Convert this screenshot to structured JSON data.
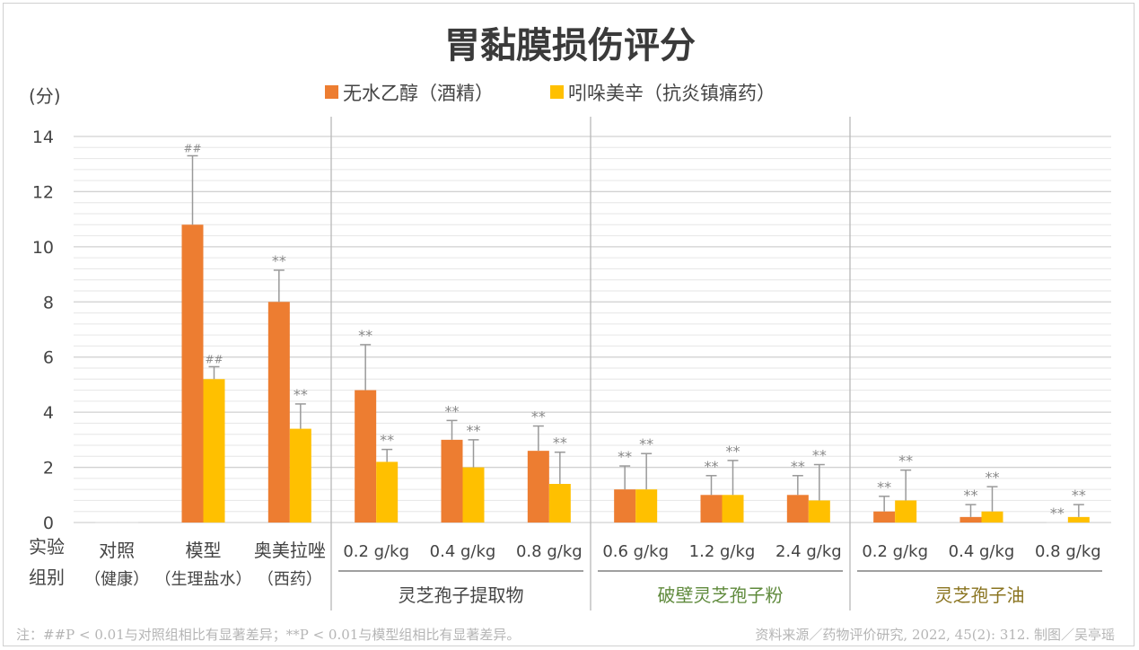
{
  "chart_data": {
    "type": "bar",
    "title": "胃黏膜损伤评分",
    "ylabel": "(分)",
    "xlabel": "实验组别",
    "xlabel_lines": [
      "实验",
      "组别"
    ],
    "ylim": [
      0,
      14
    ],
    "yticks": [
      0,
      2,
      4,
      6,
      8,
      10,
      12,
      14
    ],
    "minor_grid_step": 0.4,
    "grid": true,
    "legend_position": "top",
    "categories": [
      {
        "main": "对照",
        "sub": "（健康）"
      },
      {
        "main": "模型",
        "sub": "（生理盐水）"
      },
      {
        "main": "奥美拉唑",
        "sub": "（西药）"
      },
      {
        "main": "0.2 g/kg"
      },
      {
        "main": "0.4 g/kg"
      },
      {
        "main": "0.8 g/kg"
      },
      {
        "main": "0.6 g/kg"
      },
      {
        "main": "1.2 g/kg"
      },
      {
        "main": "2.4 g/kg"
      },
      {
        "main": "0.2 g/kg"
      },
      {
        "main": "0.4 g/kg"
      },
      {
        "main": "0.8 g/kg"
      }
    ],
    "groups": [
      {
        "label": "灵芝孢子提取物",
        "color": "#444444",
        "range": [
          3,
          5
        ]
      },
      {
        "label": "破壁灵芝孢子粉",
        "color": "#5f8a3c",
        "range": [
          6,
          8
        ]
      },
      {
        "label": "灵芝孢子油",
        "color": "#8a7420",
        "range": [
          9,
          11
        ]
      }
    ],
    "series": [
      {
        "name": "无水乙醇（酒精）",
        "color": "#ed7d31",
        "values": [
          0,
          10.8,
          8.0,
          4.8,
          3.0,
          2.6,
          1.2,
          1.0,
          1.0,
          0.4,
          0.2,
          0
        ],
        "error_upper": [
          0,
          13.3,
          9.15,
          6.45,
          3.7,
          3.5,
          2.05,
          1.7,
          1.7,
          0.95,
          0.65,
          0
        ],
        "marks": [
          "",
          "##",
          "**",
          "**",
          "**",
          "**",
          "**",
          "**",
          "**",
          "**",
          "**",
          "**"
        ]
      },
      {
        "name": "吲哚美辛（抗炎镇痛药）",
        "color": "#ffc000",
        "values": [
          0,
          5.2,
          3.4,
          2.2,
          2.0,
          1.4,
          1.2,
          1.0,
          0.8,
          0.8,
          0.4,
          0.2
        ],
        "error_upper": [
          0,
          5.65,
          4.3,
          2.65,
          3.0,
          2.55,
          2.5,
          2.25,
          2.1,
          1.9,
          1.3,
          0.65
        ],
        "marks": [
          "",
          "##",
          "**",
          "**",
          "**",
          "**",
          "**",
          "**",
          "**",
          "**",
          "**",
          "**"
        ]
      }
    ],
    "note": "注：##P < 0.01与对照组相比有显著差异；**P < 0.01与模型组相比有显著差异。",
    "source": "资料来源／药物评价研究, 2022, 45(2): 312.   制图／吴亭瑶"
  }
}
